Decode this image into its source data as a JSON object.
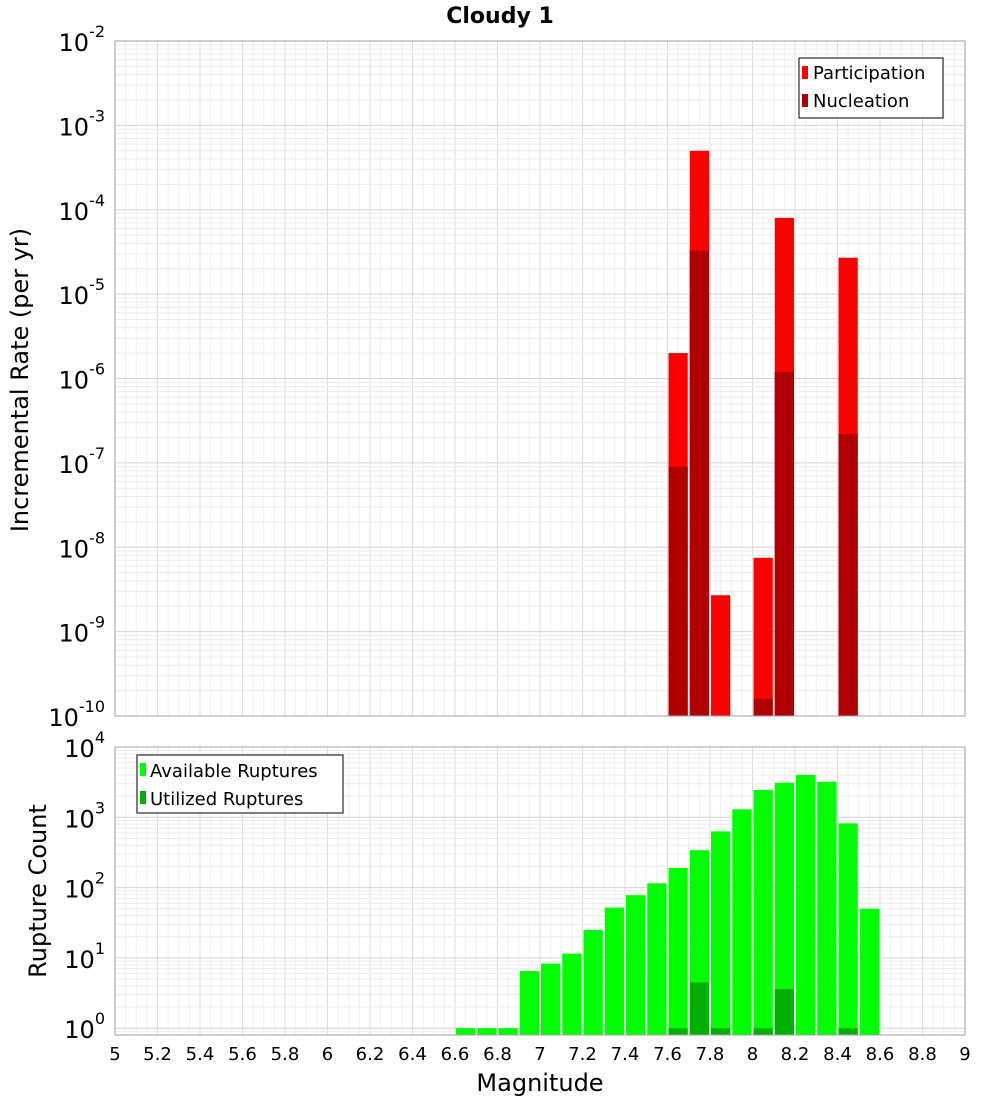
{
  "chart_data": [
    {
      "type": "bar",
      "title": "Cloudy 1",
      "xlabel": "",
      "ylabel": "Incremental Rate (per yr)",
      "yscale": "log",
      "ylim": [
        1e-10,
        0.01
      ],
      "xlim": [
        5,
        9
      ],
      "bin_width": 0.1,
      "y_ticks": [
        {
          "base": "10",
          "exp": "-10"
        },
        {
          "base": "10",
          "exp": "-9"
        },
        {
          "base": "10",
          "exp": "-8"
        },
        {
          "base": "10",
          "exp": "-7"
        },
        {
          "base": "10",
          "exp": "-6"
        },
        {
          "base": "10",
          "exp": "-5"
        },
        {
          "base": "10",
          "exp": "-4"
        },
        {
          "base": "10",
          "exp": "-3"
        },
        {
          "base": "10",
          "exp": "-2"
        }
      ],
      "legend": {
        "position": "top-right",
        "entries": [
          "Participation",
          "Nucleation"
        ]
      },
      "series": [
        {
          "name": "Participation",
          "color": "#ff0000",
          "x": [
            7.65,
            7.75,
            7.85,
            8.05,
            8.15,
            8.45
          ],
          "values": [
            2e-06,
            0.0005,
            2.7e-09,
            7.5e-09,
            8e-05,
            2.7e-05
          ]
        },
        {
          "name": "Nucleation",
          "color": "#b00000",
          "x": [
            7.65,
            7.75,
            8.05,
            8.15,
            8.45
          ],
          "values": [
            9e-08,
            3.3e-05,
            1.6e-10,
            1.2e-06,
            2.2e-07
          ]
        }
      ]
    },
    {
      "type": "bar",
      "title": "",
      "xlabel": "Magnitude",
      "ylabel": "Rupture Count",
      "yscale": "log",
      "ylim": [
        0.8,
        10000
      ],
      "xlim": [
        5,
        9
      ],
      "bin_width": 0.1,
      "y_ticks": [
        {
          "base": "10",
          "exp": "0"
        },
        {
          "base": "10",
          "exp": "1"
        },
        {
          "base": "10",
          "exp": "2"
        },
        {
          "base": "10",
          "exp": "3"
        },
        {
          "base": "10",
          "exp": "4"
        }
      ],
      "x_tick_labels": [
        "5",
        "5.2",
        "5.4",
        "5.6",
        "5.8",
        "6",
        "6.2",
        "6.4",
        "6.6",
        "6.8",
        "7",
        "7.2",
        "7.4",
        "7.6",
        "7.8",
        "8",
        "8.2",
        "8.4",
        "8.6",
        "8.8",
        "9"
      ],
      "legend": {
        "position": "top-left",
        "entries": [
          "Available Ruptures",
          "Utilized Ruptures"
        ]
      },
      "series": [
        {
          "name": "Available Ruptures",
          "color": "#00ff00",
          "x": [
            6.65,
            6.75,
            6.85,
            6.95,
            7.05,
            7.15,
            7.25,
            7.35,
            7.45,
            7.55,
            7.65,
            7.75,
            7.85,
            7.95,
            8.05,
            8.15,
            8.25,
            8.35,
            8.45,
            8.55
          ],
          "values": [
            1,
            1,
            1,
            6.5,
            8.3,
            11.5,
            25,
            52,
            78,
            115,
            190,
            340,
            630,
            1300,
            2450,
            3100,
            4000,
            3200,
            820,
            50
          ]
        },
        {
          "name": "Utilized Ruptures",
          "color": "#00b000",
          "x": [
            7.65,
            7.75,
            7.85,
            8.05,
            8.15,
            8.45
          ],
          "values": [
            1,
            4.5,
            1,
            1,
            3.6,
            1
          ]
        }
      ]
    }
  ]
}
